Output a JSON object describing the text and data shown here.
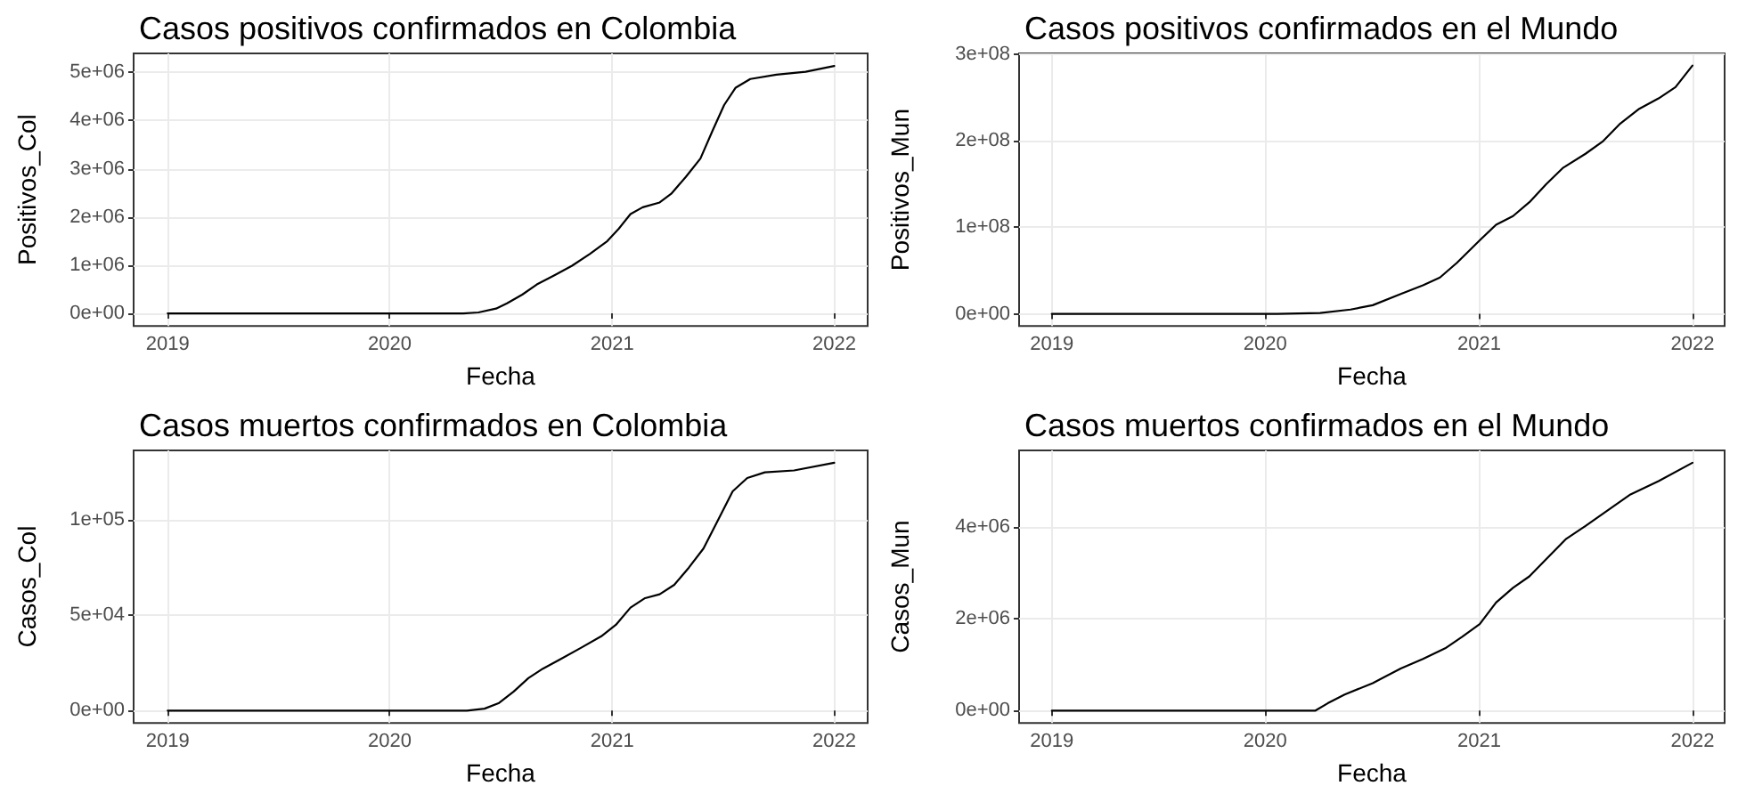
{
  "chart_data": [
    {
      "type": "line",
      "title": "Casos positivos confirmados en Colombia",
      "xlabel": "Fecha",
      "ylabel": "Positivos_Col",
      "color": "#000000",
      "grid": true,
      "x": [
        "2019-01-01",
        "2020-05-01",
        "2020-05-26",
        "2020-06-24",
        "2020-07-12",
        "2020-08-06",
        "2020-08-30",
        "2020-09-28",
        "2020-10-27",
        "2020-11-25",
        "2020-12-24",
        "2021-01-12",
        "2021-01-31",
        "2021-02-20",
        "2021-03-20",
        "2021-04-08",
        "2021-05-02",
        "2021-05-26",
        "2021-06-15",
        "2021-07-04",
        "2021-07-23",
        "2021-08-16",
        "2021-09-28",
        "2021-11-15",
        "2022-01-01"
      ],
      "values": [
        0,
        0,
        20000,
        100000,
        210000,
        390000,
        600000,
        790000,
        990000,
        1230000,
        1500000,
        1760000,
        2060000,
        2200000,
        2300000,
        2480000,
        2830000,
        3210000,
        3790000,
        4320000,
        4680000,
        4860000,
        4950000,
        5010000,
        5130000
      ],
      "xlim": [
        "2018-11-06",
        "2022-02-25"
      ],
      "xticks": [
        "2019",
        "2020",
        "2021",
        "2022"
      ],
      "ylim": [
        -260000,
        5390000
      ],
      "yticks": [
        {
          "value": 0,
          "label": "0e+00"
        },
        {
          "value": 1000000,
          "label": "1e+06"
        },
        {
          "value": 2000000,
          "label": "2e+06"
        },
        {
          "value": 3000000,
          "label": "3e+06"
        },
        {
          "value": 4000000,
          "label": "4e+06"
        },
        {
          "value": 5000000,
          "label": "5e+06"
        }
      ]
    },
    {
      "type": "line",
      "title": "Casos positivos confirmados en el Mundo",
      "xlabel": "Fecha",
      "ylabel": "Positivos_Mun",
      "color": "#000000",
      "grid": true,
      "x": [
        "2019-01-01",
        "2020-01-22",
        "2020-04-04",
        "2020-05-26",
        "2020-07-03",
        "2020-08-20",
        "2020-09-27",
        "2020-10-26",
        "2020-11-24",
        "2021-01-02",
        "2021-01-30",
        "2021-02-28",
        "2021-03-28",
        "2021-04-26",
        "2021-05-25",
        "2021-07-02",
        "2021-07-31",
        "2021-08-29",
        "2021-10-02",
        "2021-11-04",
        "2021-12-03",
        "2022-01-01"
      ],
      "values": [
        0,
        0,
        1000000,
        5000000,
        10000000,
        23000000,
        33000000,
        42000000,
        59000000,
        85000000,
        103000000,
        113000000,
        129000000,
        150000000,
        169000000,
        185000000,
        199000000,
        219000000,
        237000000,
        249000000,
        262000000,
        287000000
      ],
      "xlim": [
        "2018-11-06",
        "2022-02-25"
      ],
      "xticks": [
        "2019",
        "2020",
        "2021",
        "2022"
      ],
      "ylim": [
        -14000000,
        301000000
      ],
      "yticks": [
        {
          "value": 0,
          "label": "0e+00"
        },
        {
          "value": 100000000,
          "label": "1e+08"
        },
        {
          "value": 200000000,
          "label": "2e+08"
        },
        {
          "value": 300000000,
          "label": "3e+08"
        }
      ]
    },
    {
      "type": "line",
      "title": "Casos muertos confirmados en Colombia",
      "xlabel": "Fecha",
      "ylabel": "Casos_Col",
      "color": "#000000",
      "grid": true,
      "x": [
        "2019-01-01",
        "2020-05-07",
        "2020-06-05",
        "2020-06-29",
        "2020-07-23",
        "2020-08-16",
        "2020-09-09",
        "2020-10-08",
        "2020-11-11",
        "2020-12-14",
        "2021-01-07",
        "2021-01-31",
        "2021-02-24",
        "2021-03-20",
        "2021-04-13",
        "2021-05-07",
        "2021-05-31",
        "2021-06-24",
        "2021-07-18",
        "2021-08-11",
        "2021-09-09",
        "2021-10-27",
        "2022-01-01"
      ],
      "values": [
        0,
        0,
        1000,
        4000,
        10000,
        17000,
        22000,
        27000,
        33000,
        39000,
        45000,
        54000,
        59000,
        61000,
        66000,
        75000,
        85000,
        100000,
        115000,
        122000,
        125000,
        126000,
        130000
      ],
      "xlim": [
        "2018-11-06",
        "2022-02-25"
      ],
      "xticks": [
        "2019",
        "2020",
        "2021",
        "2022"
      ],
      "ylim": [
        -6500,
        136500
      ],
      "yticks": [
        {
          "value": 0,
          "label": "0e+00"
        },
        {
          "value": 50000,
          "label": "5e+04"
        },
        {
          "value": 100000,
          "label": "1e+05"
        }
      ]
    },
    {
      "type": "line",
      "title": "Casos muertos confirmados en el Mundo",
      "xlabel": "Fecha",
      "ylabel": "Casos_Mun",
      "color": "#000000",
      "grid": true,
      "x": [
        "2019-01-01",
        "2020-03-27",
        "2020-04-17",
        "2020-05-16",
        "2020-07-03",
        "2020-08-20",
        "2020-09-27",
        "2020-11-04",
        "2020-12-03",
        "2021-01-02",
        "2021-01-30",
        "2021-02-28",
        "2021-03-28",
        "2021-04-26",
        "2021-05-30",
        "2021-07-02",
        "2021-08-10",
        "2021-09-17",
        "2021-11-04",
        "2022-01-01"
      ],
      "values": [
        0,
        0,
        160000,
        350000,
        600000,
        920000,
        1130000,
        1360000,
        1610000,
        1890000,
        2360000,
        2680000,
        2930000,
        3310000,
        3750000,
        4030000,
        4380000,
        4720000,
        5010000,
        5410000
      ],
      "xlim": [
        "2018-11-06",
        "2022-02-25"
      ],
      "xticks": [
        "2019",
        "2020",
        "2021",
        "2022"
      ],
      "ylim": [
        -270000,
        5680000
      ],
      "yticks": [
        {
          "value": 0,
          "label": "0e+00"
        },
        {
          "value": 2000000,
          "label": "2e+06"
        },
        {
          "value": 4000000,
          "label": "4e+06"
        }
      ]
    }
  ]
}
